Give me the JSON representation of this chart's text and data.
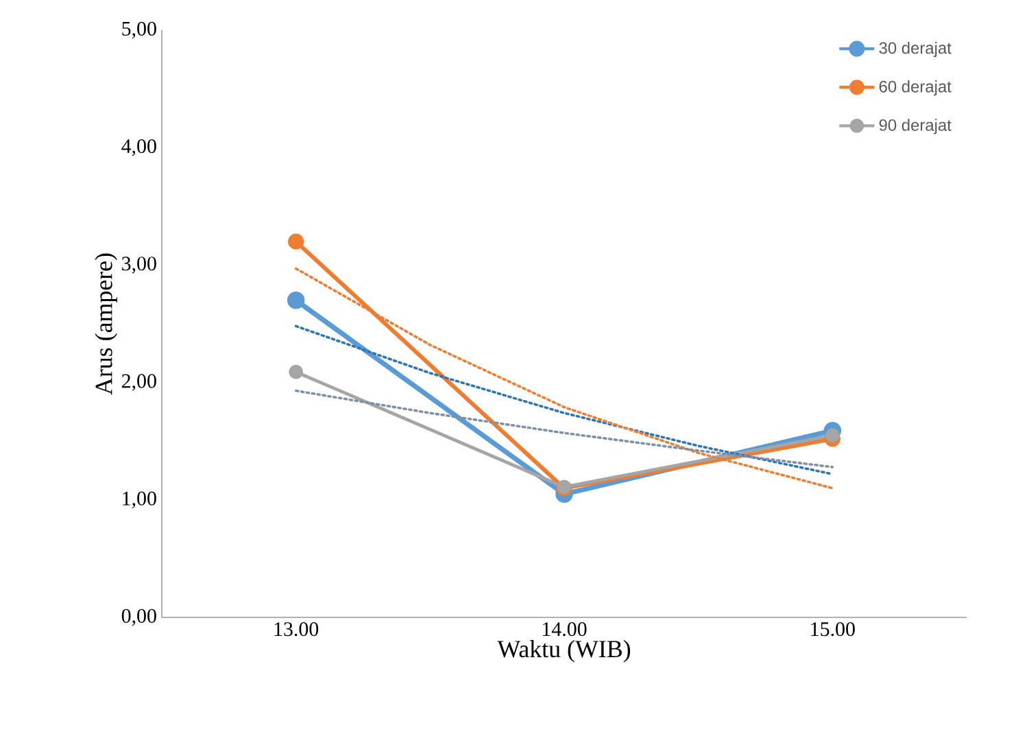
{
  "chart_data": {
    "type": "line",
    "xlabel": "Waktu (WIB)",
    "ylabel": "Arus  (ampere)",
    "xlim": [
      12.5,
      15.5
    ],
    "xticks": [
      {
        "value": 13,
        "label": "13.00"
      },
      {
        "value": 14,
        "label": "14.00"
      },
      {
        "value": 15,
        "label": "15.00"
      }
    ],
    "ylim": [
      0,
      5
    ],
    "yticks": [
      {
        "value": 0,
        "label": "0,00"
      },
      {
        "value": 1,
        "label": "1,00"
      },
      {
        "value": 2,
        "label": "2,00"
      },
      {
        "value": 3,
        "label": "3,00"
      },
      {
        "value": 4,
        "label": "4,00"
      },
      {
        "value": 5,
        "label": "5,00"
      }
    ],
    "x": [
      13,
      14,
      15
    ],
    "grid": false,
    "legend": "top right",
    "marker": "circle",
    "line_style": "solid",
    "series": [
      {
        "name": "30 derajat",
        "color": "#5b9bd5",
        "values": [
          2.7,
          1.05,
          1.59
        ]
      },
      {
        "name": "60 derajat",
        "color": "#ed7d31",
        "values": [
          3.2,
          1.1,
          1.52
        ]
      },
      {
        "name": "90 derajat",
        "color": "#a5a5a5",
        "values": [
          2.09,
          1.11,
          1.55
        ]
      },
      {
        "type": "line",
        "color": "#2e75b6",
        "marker": "none",
        "line_style": "dotted",
        "x": [
          13,
          13.5,
          14,
          14.5,
          15
        ],
        "values": [
          2.48,
          2.08,
          1.74,
          1.46,
          1.22
        ]
      },
      {
        "type": "line",
        "color": "#ed7d31",
        "marker": "none",
        "line_style": "dotted",
        "x": [
          13,
          13.5,
          14,
          14.5,
          15
        ],
        "values": [
          2.97,
          2.32,
          1.79,
          1.4,
          1.1
        ]
      },
      {
        "type": "line",
        "color": "#7f8fa9",
        "marker": "none",
        "line_style": "dotted",
        "x": [
          13,
          13.5,
          14,
          14.5,
          15
        ],
        "values": [
          1.93,
          1.74,
          1.57,
          1.42,
          1.28
        ]
      }
    ]
  }
}
